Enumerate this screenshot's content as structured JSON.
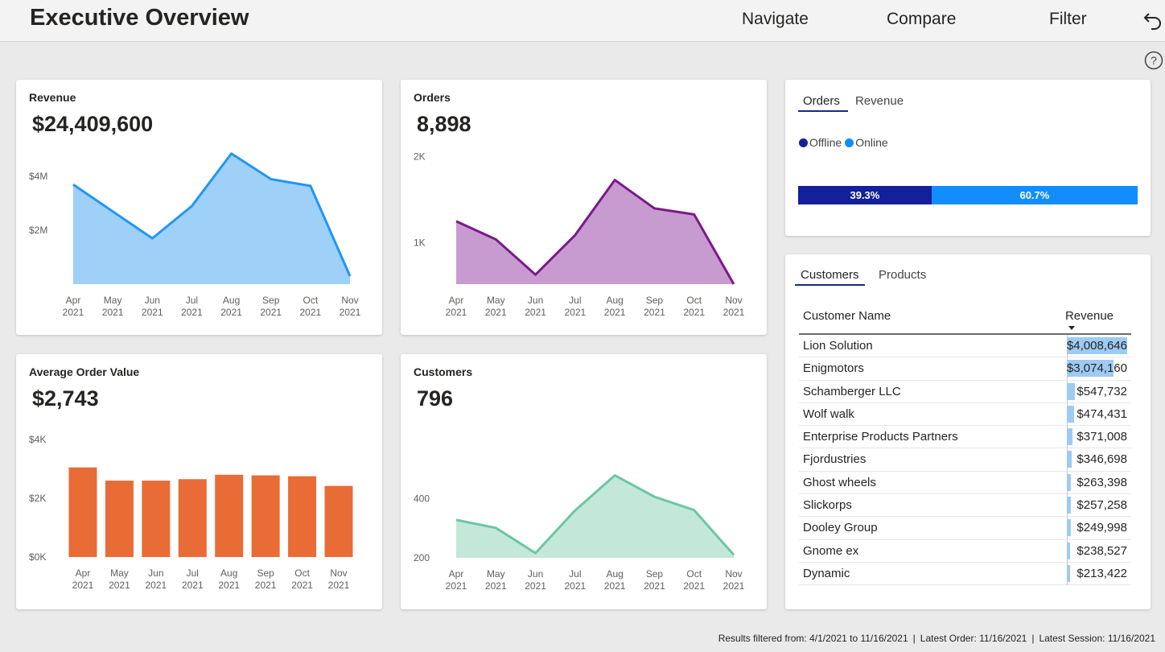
{
  "header": {
    "title": "Executive Overview",
    "nav": {
      "navigate": "Navigate",
      "compare": "Compare",
      "filter": "Filter"
    },
    "icons": {
      "back": "undo-icon",
      "help": "help-icon"
    }
  },
  "colors": {
    "revenue": "#2196f3",
    "revenue_fill": "#9fd0f7",
    "orders": "#7a1a8a",
    "orders_fill": "#c89bd0",
    "aov": "#e96c36",
    "customers": "#6cc6a4",
    "customers_fill": "#c3e8da",
    "offline": "#13209a",
    "online": "#118dff"
  },
  "months": [
    [
      "Apr",
      "2021"
    ],
    [
      "May",
      "2021"
    ],
    [
      "Jun",
      "2021"
    ],
    [
      "Jul",
      "2021"
    ],
    [
      "Aug",
      "2021"
    ],
    [
      "Sep",
      "2021"
    ],
    [
      "Oct",
      "2021"
    ],
    [
      "Nov",
      "2021"
    ]
  ],
  "cards": {
    "revenue": {
      "title": "Revenue",
      "kpi": "$24,409,600"
    },
    "orders": {
      "title": "Orders",
      "kpi": "8,898"
    },
    "aov": {
      "title": "Average Order Value",
      "kpi": "$2,743"
    },
    "customers": {
      "title": "Customers",
      "kpi": "796"
    }
  },
  "chart_data": [
    {
      "type": "area",
      "title": "Revenue",
      "x": [
        "Apr 2021",
        "May 2021",
        "Jun 2021",
        "Jul 2021",
        "Aug 2021",
        "Sep 2021",
        "Oct 2021",
        "Nov 2021"
      ],
      "values": [
        3700000,
        2700000,
        1700000,
        2900000,
        4850000,
        3900000,
        3650000,
        300000
      ],
      "yticks": [
        {
          "v": 2000000,
          "label": "$2M"
        },
        {
          "v": 4000000,
          "label": "$4M"
        }
      ],
      "ylim": [
        0,
        5800000
      ]
    },
    {
      "type": "area",
      "title": "Orders",
      "x": [
        "Apr 2021",
        "May 2021",
        "Jun 2021",
        "Jul 2021",
        "Aug 2021",
        "Sep 2021",
        "Oct 2021",
        "Nov 2021"
      ],
      "values": [
        1250,
        1040,
        630,
        1090,
        1730,
        1400,
        1330,
        520
      ],
      "yticks": [
        {
          "v": 1000,
          "label": "1K"
        },
        {
          "v": 2000,
          "label": "2K"
        }
      ],
      "ylim": [
        520,
        2100
      ]
    },
    {
      "type": "bar",
      "title": "Average Order Value",
      "x": [
        "Apr 2021",
        "May 2021",
        "Jun 2021",
        "Jul 2021",
        "Aug 2021",
        "Sep 2021",
        "Oct 2021",
        "Nov 2021"
      ],
      "values": [
        3050,
        2600,
        2600,
        2650,
        2800,
        2780,
        2750,
        2420
      ],
      "yticks": [
        {
          "v": 0,
          "label": "$0K"
        },
        {
          "v": 2000,
          "label": "$2K"
        },
        {
          "v": 4000,
          "label": "$4K"
        }
      ],
      "ylim": [
        0,
        4000
      ]
    },
    {
      "type": "area",
      "title": "Customers",
      "x": [
        "Apr 2021",
        "May 2021",
        "Jun 2021",
        "Jul 2021",
        "Aug 2021",
        "Sep 2021",
        "Oct 2021",
        "Nov 2021"
      ],
      "values": [
        328,
        301,
        216,
        360,
        478,
        406,
        361,
        210
      ],
      "yticks": [
        {
          "v": 200,
          "label": "200"
        },
        {
          "v": 400,
          "label": "400"
        }
      ],
      "ylim": [
        200,
        610
      ]
    },
    {
      "type": "bar",
      "title": "Orders",
      "stacked_percent": true,
      "series": [
        {
          "name": "Offline",
          "values": [
            39.3
          ]
        },
        {
          "name": "Online",
          "values": [
            60.7
          ]
        }
      ]
    },
    {
      "type": "table",
      "columns": [
        "Customer Name",
        "Revenue"
      ],
      "rows": [
        [
          "Lion Solution",
          4008646
        ],
        [
          "Enigmotors",
          3074160
        ],
        [
          "Schamberger LLC",
          547732
        ],
        [
          "Wolf walk",
          474431
        ],
        [
          "Enterprise Products Partners",
          371008
        ],
        [
          "Fjordustries",
          346698
        ],
        [
          "Ghost wheels",
          263398
        ],
        [
          "Slickorps",
          257258
        ],
        [
          "Dooley Group",
          249998
        ],
        [
          "Gnome ex",
          238527
        ],
        [
          "Dynamic",
          213422
        ]
      ]
    }
  ],
  "split_panel": {
    "tabs": [
      "Orders",
      "Revenue"
    ],
    "legend": [
      "Offline",
      "Online"
    ],
    "labels": [
      "39.3%",
      "60.7%"
    ]
  },
  "customers_panel": {
    "tabs": [
      "Customers",
      "Products"
    ],
    "columns": [
      "Customer Name",
      "Revenue"
    ],
    "rows": [
      {
        "name": "Lion Solution",
        "value": "$4,008,646"
      },
      {
        "name": "Enigmotors",
        "value": "$3,074,160"
      },
      {
        "name": "Schamberger LLC",
        "value": "$547,732"
      },
      {
        "name": "Wolf walk",
        "value": "$474,431"
      },
      {
        "name": "Enterprise Products Partners",
        "value": "$371,008"
      },
      {
        "name": "Fjordustries",
        "value": "$346,698"
      },
      {
        "name": "Ghost wheels",
        "value": "$263,398"
      },
      {
        "name": "Slickorps",
        "value": "$257,258"
      },
      {
        "name": "Dooley Group",
        "value": "$249,998"
      },
      {
        "name": "Gnome ex",
        "value": "$238,527"
      },
      {
        "name": "Dynamic",
        "value": "$213,422"
      }
    ]
  },
  "footer": {
    "filtered": "Results filtered from: 4/1/2021 to 11/16/2021",
    "latest_order": "Latest Order: 11/16/2021",
    "latest_session": "Latest Session: 11/16/2021"
  }
}
